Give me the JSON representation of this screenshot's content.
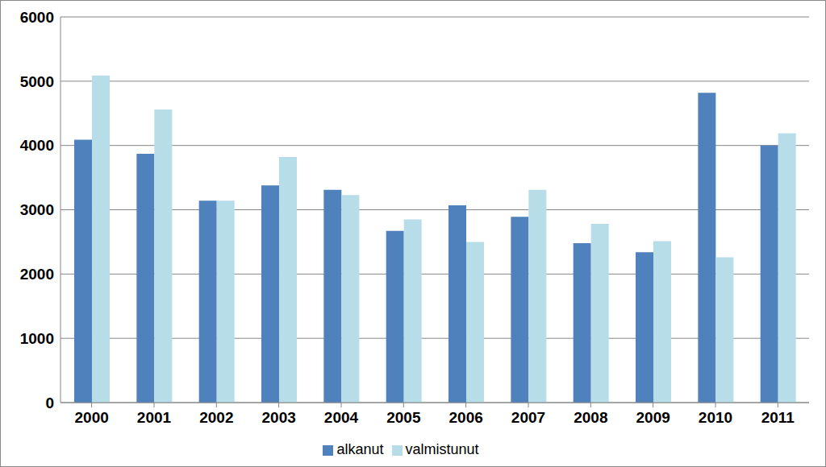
{
  "chart_data": {
    "type": "bar",
    "categories": [
      "2000",
      "2001",
      "2002",
      "2003",
      "2004",
      "2005",
      "2006",
      "2007",
      "2008",
      "2009",
      "2010",
      "2011"
    ],
    "series": [
      {
        "name": "alkanut",
        "color": "#4f81bd",
        "values": [
          4090,
          3870,
          3140,
          3380,
          3310,
          2670,
          3070,
          2890,
          2480,
          2340,
          4820,
          4000
        ]
      },
      {
        "name": "valmistunut",
        "color": "#b7dde8",
        "values": [
          5090,
          4560,
          3140,
          3820,
          3230,
          2850,
          2500,
          3310,
          2780,
          2510,
          2260,
          4190
        ]
      }
    ],
    "ylim": [
      0,
      6000
    ],
    "yticks": [
      0,
      1000,
      2000,
      3000,
      4000,
      5000,
      6000
    ],
    "grid": true,
    "legend": "bottom"
  }
}
